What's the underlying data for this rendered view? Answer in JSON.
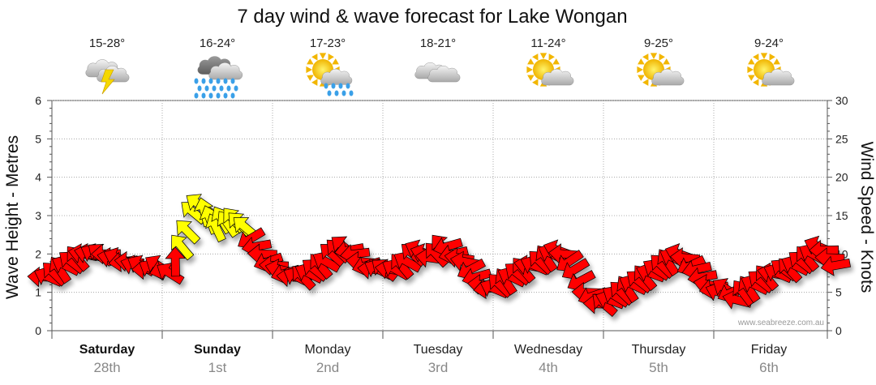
{
  "title": "7 day wind & wave forecast for Lake Wongan",
  "watermark": "www.seabreeze.com.au",
  "chart_data": {
    "type": "line",
    "title": "7 day wind & wave forecast for Lake Wongan",
    "ylabel_left": "Wave Height - Metres",
    "ylabel_right": "Wind Speed - Knots",
    "ylim_left": [
      0,
      6
    ],
    "ylim_right": [
      0,
      30
    ],
    "left_ticks": [
      "0",
      "1",
      "2",
      "3",
      "4",
      "5",
      "6"
    ],
    "right_ticks": [
      "0",
      "5",
      "10",
      "15",
      "20",
      "25",
      "30"
    ],
    "grid": true,
    "days": [
      {
        "name": "Saturday",
        "date": "28th",
        "temp": "15-28°",
        "icon": "thunderstorm-icon",
        "bold": true
      },
      {
        "name": "Sunday",
        "date": "1st",
        "temp": "16-24°",
        "icon": "heavy-rain-icon",
        "bold": true
      },
      {
        "name": "Monday",
        "date": "2nd",
        "temp": "17-23°",
        "icon": "sun-shower-icon",
        "bold": false
      },
      {
        "name": "Tuesday",
        "date": "3rd",
        "temp": "18-21°",
        "icon": "cloudy-icon",
        "bold": false
      },
      {
        "name": "Wednesday",
        "date": "4th",
        "temp": "11-24°",
        "icon": "partly-cloudy-icon",
        "bold": false
      },
      {
        "name": "Thursday",
        "date": "5th",
        "temp": "9-25°",
        "icon": "partly-cloudy-icon",
        "bold": false
      },
      {
        "name": "Friday",
        "date": "6th",
        "temp": "9-24°",
        "icon": "partly-cloudy-icon",
        "bold": false
      }
    ],
    "series": [
      {
        "name": "Wind Speed",
        "unit": "knots",
        "values": [
          7,
          7,
          7.5,
          8,
          8.5,
          9,
          9.5,
          10,
          10,
          10,
          10,
          10,
          9.5,
          9.5,
          9,
          9,
          8.5,
          8.5,
          8,
          8,
          8.5,
          8,
          7.5,
          9,
          11,
          13,
          15.5,
          16.5,
          15.5,
          14.5,
          13.5,
          14.5,
          14,
          14.5,
          14,
          13.5,
          12,
          11,
          10,
          9,
          8.5,
          8,
          7.5,
          7,
          7,
          7,
          7.5,
          8,
          8.5,
          9,
          10,
          10.5,
          11,
          10.5,
          10,
          9,
          8.5,
          8,
          8,
          8,
          8,
          8,
          8.5,
          9,
          10,
          10.5,
          10,
          9.5,
          10,
          11,
          11,
          10,
          9.5,
          9,
          8,
          7,
          6,
          5.5,
          5.5,
          6,
          6.5,
          7,
          7.5,
          8,
          8.5,
          8.5,
          9,
          9.5,
          10,
          10.5,
          10,
          9,
          8,
          6.5,
          5,
          4.5,
          3.5,
          3.5,
          4,
          4.5,
          5,
          5.5,
          6,
          6.5,
          7,
          7.5,
          8,
          8.5,
          9,
          9.5,
          10,
          9.5,
          8.5,
          8,
          7,
          6,
          5.5,
          5,
          5.5,
          5,
          4,
          5,
          5.5,
          6,
          6.5,
          7,
          7.5,
          7.5,
          8,
          8,
          8.5,
          9,
          9.5,
          10,
          11,
          10.5,
          9.5,
          8.5
        ],
        "highlight_color": "#ffff00",
        "color": "#ff0000"
      }
    ],
    "highlight_indices": [
      24,
      25,
      26,
      27,
      28,
      29,
      30,
      31,
      32,
      33,
      34,
      35
    ]
  }
}
